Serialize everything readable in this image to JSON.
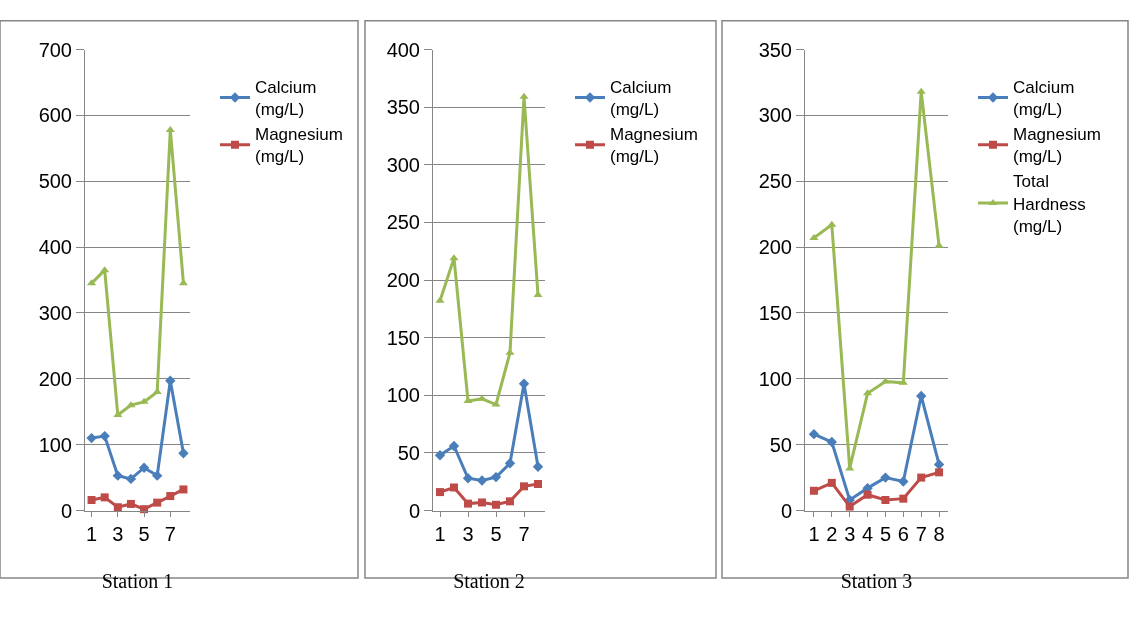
{
  "chart_data": [
    {
      "type": "line",
      "xlabel": "Station 1",
      "categories": [
        "1",
        null,
        "3",
        null,
        "5",
        null,
        "7",
        null
      ],
      "ylim": [
        0,
        700
      ],
      "yticks": [
        0,
        100,
        200,
        300,
        400,
        500,
        600,
        700
      ],
      "grid": "y",
      "legend": "right",
      "series": [
        {
          "name": "Calcium (mg/L)",
          "color": "#4a7ebb",
          "marker": "diamond",
          "values": [
            110,
            113,
            53,
            48,
            65,
            53,
            197,
            87
          ]
        },
        {
          "name": "Magnesium (mg/L)",
          "color": "#be4b48",
          "marker": "square",
          "values": [
            16,
            20,
            5,
            10,
            2,
            12,
            22,
            32
          ]
        },
        {
          "color": "#98b954",
          "marker": "triangle",
          "values": [
            345,
            365,
            145,
            160,
            165,
            180,
            578,
            345
          ]
        }
      ]
    },
    {
      "type": "line",
      "xlabel": "Station 2",
      "categories": [
        "1",
        null,
        "3",
        null,
        "5",
        null,
        "7",
        null
      ],
      "ylim": [
        0,
        400
      ],
      "yticks": [
        0,
        50,
        100,
        150,
        200,
        250,
        300,
        350,
        400
      ],
      "grid": "y",
      "legend": "right",
      "series": [
        {
          "name": "Calcium (mg/L)",
          "color": "#4a7ebb",
          "marker": "diamond",
          "values": [
            48,
            56,
            28,
            26,
            29,
            41,
            110,
            38
          ]
        },
        {
          "name": "Magnesium (mg/L)",
          "color": "#be4b48",
          "marker": "square",
          "values": [
            16,
            20,
            6,
            7,
            5,
            8,
            21,
            23
          ]
        },
        {
          "color": "#98b954",
          "marker": "triangle",
          "values": [
            182,
            219,
            95,
            97,
            92,
            137,
            359,
            187
          ]
        }
      ]
    },
    {
      "type": "line",
      "xlabel": "Station 3",
      "categories": [
        "1",
        "2",
        "3",
        "4",
        "5",
        "6",
        "7",
        "8"
      ],
      "ylim": [
        0,
        350
      ],
      "yticks": [
        0,
        50,
        100,
        150,
        200,
        250,
        300,
        350
      ],
      "grid": "y",
      "legend": "right",
      "series": [
        {
          "name": "Calcium (mg/L)",
          "color": "#4a7ebb",
          "marker": "diamond",
          "values": [
            58,
            52,
            8,
            17,
            25,
            22,
            87,
            35
          ]
        },
        {
          "name": "Magnesium (mg/L)",
          "color": "#be4b48",
          "marker": "square",
          "values": [
            15,
            21,
            3,
            12,
            8,
            9,
            25,
            29
          ]
        },
        {
          "name": "Total Hardness (mg/L)",
          "color": "#98b954",
          "marker": "triangle",
          "values": [
            207,
            217,
            32,
            89,
            98,
            97,
            318,
            201
          ]
        }
      ]
    }
  ]
}
